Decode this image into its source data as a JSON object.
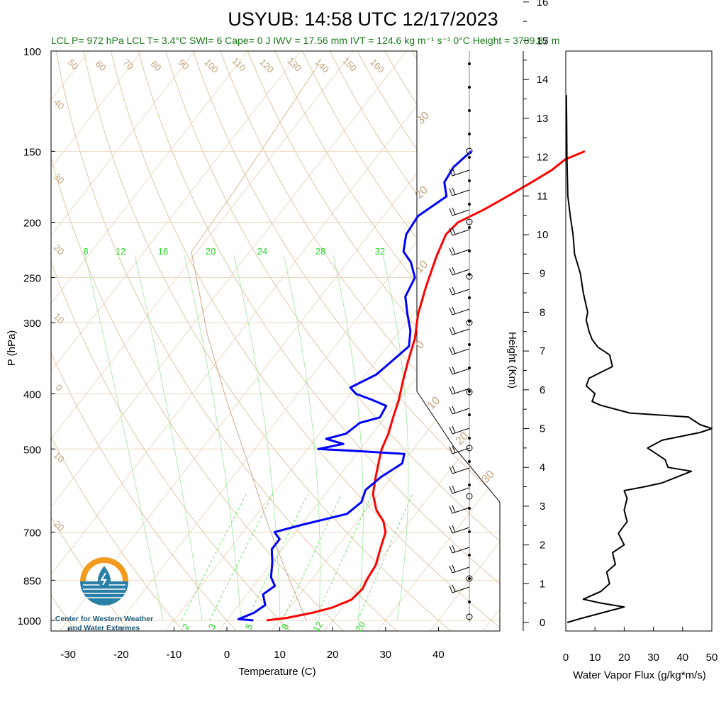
{
  "title": "USYUB: 14:58 UTC 12/17/2023",
  "info_line": "LCL P= 972 hPa  LCL T= 3.4°C  SWI= 6  Cape= 0 J  IWV = 17.56 mm  IVT = 124.6 kg m⁻¹ s⁻¹  0°C Height = 3789.87 m",
  "logo": {
    "line1": "Center for Western Weather",
    "line2": "and Water Extremes"
  },
  "colors": {
    "temperature": "#ff0000",
    "dewpoint": "#0000ff",
    "dry_adiabat": "#d9b98f",
    "mixing_ratio": "#22dd22",
    "isotherm": "#d9b98f",
    "flux": "#000000"
  },
  "chart_data": [
    {
      "type": "line",
      "subtype": "skew-T log-P sounding",
      "xlabel": "Temperature (C)",
      "ylabel": "P (hPa)",
      "xlim": [
        -34,
        51
      ],
      "ylim": [
        1000,
        100
      ],
      "y_scale": "log",
      "x_ticks": [
        "-30",
        "-20",
        "-10",
        "0",
        "10",
        "20",
        "30",
        "40"
      ],
      "y_ticks": [
        "100",
        "150",
        "200",
        "250",
        "300",
        "400",
        "500",
        "700",
        "850",
        "1000"
      ],
      "y_tick_values": [
        100,
        150,
        200,
        250,
        300,
        400,
        500,
        700,
        850,
        1000
      ],
      "dry_adiabat_labels": [
        "50",
        "60",
        "70",
        "80",
        "90",
        "100",
        "110",
        "120",
        "130",
        "140",
        "150",
        "160",
        "40",
        "30",
        "20",
        "10",
        "0",
        "10",
        "20"
      ],
      "mixing_ratio_labels_top": [
        "8",
        "12",
        "16",
        "20",
        "24",
        "28",
        "32"
      ],
      "mixing_ratio_labels_bottom": [
        "2",
        "3",
        "5",
        "8",
        "12",
        "20"
      ],
      "skewed_isotherm_labels": [
        "30",
        "20",
        "10",
        "0",
        "10",
        "20",
        "30"
      ],
      "series": [
        {
          "name": "Temperature",
          "points": [
            [
              7.5,
              1000
            ],
            [
              11,
              990
            ],
            [
              15,
              970
            ],
            [
              18,
              950
            ],
            [
              20.5,
              920
            ],
            [
              21,
              880
            ],
            [
              20.5,
              850
            ],
            [
              20,
              800
            ],
            [
              18.5,
              750
            ],
            [
              17,
              700
            ],
            [
              15,
              670
            ],
            [
              12,
              640
            ],
            [
              9,
              600
            ],
            [
              7,
              560
            ],
            [
              5,
              520
            ],
            [
              4,
              500
            ],
            [
              3,
              470
            ],
            [
              1.5,
              440
            ],
            [
              0,
              410
            ],
            [
              -2,
              380
            ],
            [
              -4,
              350
            ],
            [
              -6,
              320
            ],
            [
              -9,
              290
            ],
            [
              -11.5,
              260
            ],
            [
              -14,
              230
            ],
            [
              -15.5,
              210
            ],
            [
              -15,
              200
            ],
            [
              -12,
              190
            ],
            [
              -9.5,
              180
            ],
            [
              -7,
              170
            ],
            [
              -5,
              162
            ],
            [
              -4,
              155
            ],
            [
              -1.5,
              150
            ]
          ]
        },
        {
          "name": "Dewpoint",
          "points": [
            [
              5,
              1000
            ],
            [
              2,
              995
            ],
            [
              4,
              970
            ],
            [
              5,
              940
            ],
            [
              3,
              900
            ],
            [
              4,
              870
            ],
            [
              2,
              840
            ],
            [
              0,
              790
            ],
            [
              -2,
              750
            ],
            [
              -2,
              720
            ],
            [
              -4,
              700
            ],
            [
              0,
              680
            ],
            [
              7,
              650
            ],
            [
              8,
              620
            ],
            [
              7,
              590
            ],
            [
              8,
              560
            ],
            [
              10,
              530
            ],
            [
              9,
              510
            ],
            [
              1,
              505
            ],
            [
              -8,
              500
            ],
            [
              -4,
              490
            ],
            [
              -8,
              480
            ],
            [
              -5,
              470
            ],
            [
              -4,
              450
            ],
            [
              -1,
              440
            ],
            [
              -1.5,
              420
            ],
            [
              -5,
              410
            ],
            [
              -9,
              400
            ],
            [
              -11,
              390
            ],
            [
              -8,
              370
            ],
            [
              -7,
              350
            ],
            [
              -6,
              330
            ],
            [
              -8,
              310
            ],
            [
              -11,
              290
            ],
            [
              -14,
              270
            ],
            [
              -15,
              250
            ],
            [
              -18,
              235
            ],
            [
              -21,
              225
            ],
            [
              -23,
              210
            ],
            [
              -23.5,
              195
            ],
            [
              -21,
              180
            ],
            [
              -23.5,
              170
            ],
            [
              -24,
              160
            ],
            [
              -23,
              150
            ]
          ]
        }
      ],
      "wind_barb_count": 22
    },
    {
      "type": "line",
      "subtype": "vertical profile",
      "xlabel": "Water Vapor Flux (g/kg*m/s)",
      "ylabel": "Height (Km)",
      "xlim": [
        0,
        50
      ],
      "ylim": [
        0,
        16.4
      ],
      "x_ticks": [
        "0",
        "10",
        "20",
        "30",
        "40",
        "50"
      ],
      "y_ticks": [
        "0",
        "1",
        "2",
        "3",
        "4",
        "5",
        "6",
        "7",
        "8",
        "9",
        "10",
        "11",
        "12",
        "13",
        "14",
        "15",
        "16"
      ],
      "series": [
        {
          "name": "Water Vapor Flux",
          "points": [
            [
              0.5,
              0
            ],
            [
              5,
              0.1
            ],
            [
              20,
              0.4
            ],
            [
              12,
              0.5
            ],
            [
              6,
              0.6
            ],
            [
              12,
              0.8
            ],
            [
              15,
              1
            ],
            [
              14,
              1.3
            ],
            [
              17,
              1.5
            ],
            [
              16,
              1.8
            ],
            [
              20,
              2
            ],
            [
              18,
              2.3
            ],
            [
              21,
              2.6
            ],
            [
              20,
              2.9
            ],
            [
              21,
              3.2
            ],
            [
              20,
              3.4
            ],
            [
              27,
              3.5
            ],
            [
              33,
              3.6
            ],
            [
              43,
              3.9
            ],
            [
              35,
              4
            ],
            [
              34,
              4.2
            ],
            [
              28,
              4.5
            ],
            [
              33,
              4.7
            ],
            [
              46,
              4.9
            ],
            [
              50,
              5
            ],
            [
              46,
              5.1
            ],
            [
              42,
              5.3
            ],
            [
              22,
              5.4
            ],
            [
              12,
              5.6
            ],
            [
              9,
              5.7
            ],
            [
              10,
              5.9
            ],
            [
              7,
              6.1
            ],
            [
              8,
              6.3
            ],
            [
              16,
              6.6
            ],
            [
              15,
              6.9
            ],
            [
              11,
              7.1
            ],
            [
              9,
              7.3
            ],
            [
              8,
              7.5
            ],
            [
              7,
              7.8
            ],
            [
              7.5,
              8
            ],
            [
              6,
              8.5
            ],
            [
              5,
              9
            ],
            [
              3,
              9.5
            ],
            [
              2.5,
              10
            ],
            [
              1.5,
              10.5
            ],
            [
              0.7,
              11
            ],
            [
              0.4,
              12
            ],
            [
              0.3,
              13
            ],
            [
              0.2,
              13.6
            ]
          ]
        }
      ]
    }
  ]
}
